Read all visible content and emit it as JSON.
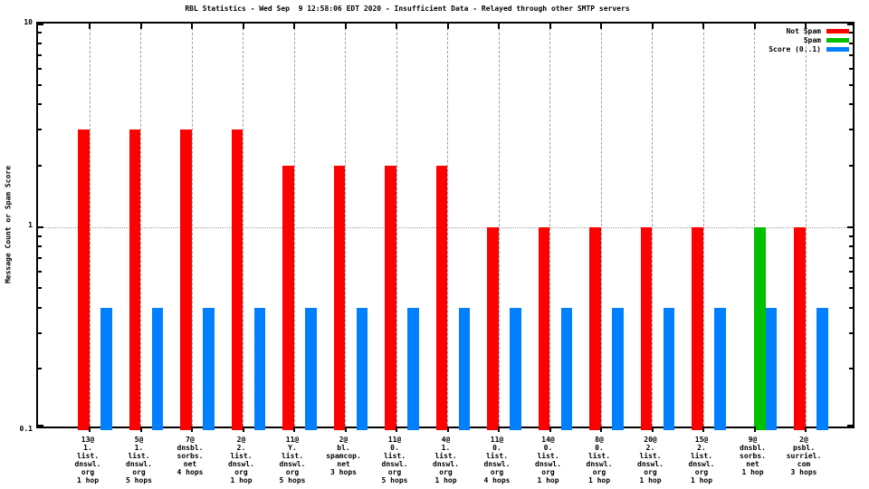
{
  "title": "RBL Statistics - Wed Sep  9 12:58:06 EDT 2020 - Insufficient Data - Relayed through other SMTP servers",
  "y_axis": {
    "label": "Message Count or Spam Score",
    "ticks": [
      {
        "value": 10,
        "label": "10"
      },
      {
        "value": 1,
        "label": "1"
      },
      {
        "value": 0.1,
        "label": "0.1"
      }
    ]
  },
  "legend": {
    "position": "top-right",
    "entries": [
      {
        "label": "Not Spam",
        "color": "#ff0000"
      },
      {
        "label": "Spam",
        "color": "#00c000"
      },
      {
        "label": "Score (0..1)",
        "color": "#0080ff"
      }
    ]
  },
  "colors": {
    "not_spam": "#ff0000",
    "spam": "#00c000",
    "score": "#0080ff",
    "grid": "#9e9e9e",
    "border": "#000000"
  },
  "chart_data": {
    "type": "bar",
    "scale": "log",
    "ylim": [
      0.1,
      10
    ],
    "ylabel": "Message Count or Spam Score",
    "grid": {
      "vertical_dashed_per_category": true,
      "horizontal_dotted_at": 1
    },
    "legend_position": "top-right",
    "categories": [
      [
        "13@",
        "1.",
        "list.",
        "dnswl.",
        "org",
        "1 hop"
      ],
      [
        "5@",
        "1.",
        "list.",
        "dnswl.",
        "org",
        "5 hops"
      ],
      [
        "7@",
        "dnsbl.",
        "sorbs.",
        "net",
        "4 hops"
      ],
      [
        "2@",
        "2.",
        "list.",
        "dnswl.",
        "org",
        "1 hop"
      ],
      [
        "11@",
        "Y.",
        "list.",
        "dnswl.",
        "org",
        "5 hops"
      ],
      [
        "2@",
        "bl.",
        "spamcop.",
        "net",
        "3 hops"
      ],
      [
        "11@",
        "0.",
        "list.",
        "dnswl.",
        "org",
        "5 hops"
      ],
      [
        "4@",
        "1.",
        "list.",
        "dnswl.",
        "org",
        "1 hop"
      ],
      [
        "11@",
        "0.",
        "list.",
        "dnswl.",
        "org",
        "4 hops"
      ],
      [
        "14@",
        "0.",
        "list.",
        "dnswl.",
        "org",
        "1 hop"
      ],
      [
        "8@",
        "0.",
        "list.",
        "dnswl.",
        "org",
        "1 hop"
      ],
      [
        "20@",
        "2.",
        "list.",
        "dnswl.",
        "org",
        "1 hop"
      ],
      [
        "15@",
        "2.",
        "list.",
        "dnswl.",
        "org",
        "1 hop"
      ],
      [
        "9@",
        "dnsbl.",
        "sorbs.",
        "net",
        "1 hop"
      ],
      [
        "2@",
        "psbl.",
        "surriel.",
        "com",
        "3 hops"
      ]
    ],
    "series": [
      {
        "name": "Not Spam",
        "color": "#ff0000",
        "values": [
          3,
          3,
          3,
          3,
          2,
          2,
          2,
          2,
          1,
          1,
          1,
          1,
          1,
          0,
          1
        ]
      },
      {
        "name": "Spam",
        "color": "#00c000",
        "values": [
          0,
          0,
          0,
          0,
          0,
          0,
          0,
          0,
          0,
          0,
          0,
          0,
          0,
          1,
          0
        ]
      },
      {
        "name": "Score (0..1)",
        "color": "#0080ff",
        "values": [
          0.4,
          0.4,
          0.4,
          0.4,
          0.4,
          0.4,
          0.4,
          0.4,
          0.4,
          0.4,
          0.4,
          0.4,
          0.4,
          0.4,
          0.4
        ]
      }
    ],
    "minor_log_ticks": [
      0.2,
      0.3,
      0.4,
      0.5,
      0.6,
      0.7,
      0.8,
      0.9,
      2,
      3,
      4,
      5,
      6,
      7,
      8,
      9
    ]
  }
}
